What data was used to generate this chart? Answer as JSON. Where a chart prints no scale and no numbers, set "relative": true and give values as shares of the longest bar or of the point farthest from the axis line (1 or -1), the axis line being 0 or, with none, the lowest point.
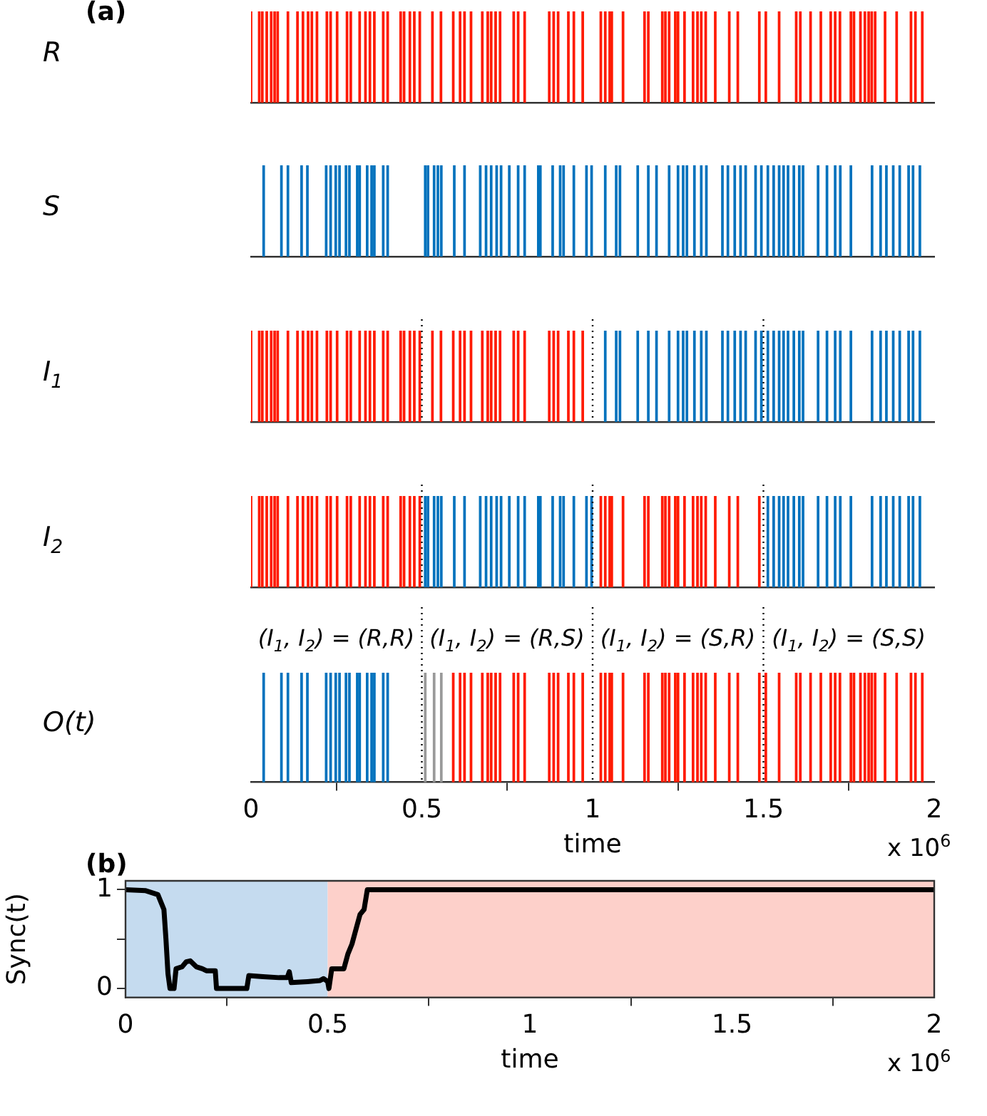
{
  "chart_data": [
    {
      "type": "bar",
      "title": "(a)",
      "ylabel": "R",
      "relative": true,
      "xlim": [
        0,
        2
      ],
      "tick_labels": false,
      "series": [
        {
          "color": "#ff1a00",
          "x": [
            0,
            0.024,
            0.033,
            0.046,
            0.059,
            0.069,
            0.078,
            0.108,
            0.136,
            0.152,
            0.167,
            0.178,
            0.193,
            0.222,
            0.233,
            0.252,
            0.281,
            0.292,
            0.318,
            0.335,
            0.348,
            0.361,
            0.387,
            0.4,
            0.438,
            0.448,
            0.465,
            0.478,
            0.494,
            0.531,
            0.556,
            0.592,
            0.612,
            0.625,
            0.644,
            0.677,
            0.693,
            0.703,
            0.716,
            0.729,
            0.769,
            0.782,
            0.801,
            0.873,
            0.886,
            0.899,
            0.929,
            0.945,
            0.971,
            1.024,
            1.037,
            1.05,
            1.056,
            1.089,
            1.152,
            1.163,
            1.204,
            1.213,
            1.224,
            1.242,
            1.25,
            1.269,
            1.294,
            1.307,
            1.318,
            1.331,
            1.359,
            1.4,
            1.425,
            1.488,
            1.507,
            1.546,
            1.596,
            1.608,
            1.638,
            1.668,
            1.697,
            1.71,
            1.724,
            1.756,
            1.765,
            1.784,
            1.797,
            1.808,
            1.817,
            1.827,
            1.856,
            1.89,
            1.932,
            1.945,
            1.965
          ],
          "values": [
            1,
            1,
            1,
            1,
            1,
            1,
            1,
            1,
            1,
            1,
            1,
            1,
            1,
            1,
            1,
            1,
            1,
            1,
            1,
            1,
            1,
            1,
            1,
            1,
            1,
            1,
            1,
            1,
            1,
            1,
            1,
            1,
            1,
            1,
            1,
            1,
            1,
            1,
            1,
            1,
            1,
            1,
            1,
            1,
            1,
            1,
            1,
            1,
            1,
            1,
            1,
            1,
            1,
            1,
            1,
            1,
            1,
            1,
            1,
            1,
            1,
            1,
            1,
            1,
            1,
            1,
            1,
            1,
            1,
            1,
            1,
            1,
            1,
            1,
            1,
            1,
            1,
            1,
            1,
            1,
            1,
            1,
            1,
            1,
            1,
            1,
            1,
            1,
            1,
            1,
            1
          ]
        }
      ]
    },
    {
      "type": "bar",
      "ylabel": "S",
      "relative": true,
      "xlim": [
        0,
        2
      ],
      "tick_labels": false,
      "series": [
        {
          "color": "#0072bd",
          "x": [
            0.037,
            0.089,
            0.108,
            0.148,
            0.165,
            0.22,
            0.233,
            0.248,
            0.259,
            0.278,
            0.288,
            0.311,
            0.318,
            0.34,
            0.353,
            0.361,
            0.387,
            0.4,
            0.51,
            0.518,
            0.536,
            0.547,
            0.557,
            0.595,
            0.625,
            0.671,
            0.688,
            0.703,
            0.719,
            0.732,
            0.756,
            0.782,
            0.801,
            0.841,
            0.847,
            0.883,
            0.905,
            0.915,
            0.945,
            0.982,
            0.997,
            1.037,
            1.069,
            1.08,
            1.132,
            1.163,
            1.187,
            1.224,
            1.25,
            1.265,
            1.276,
            1.298,
            1.318,
            1.333,
            1.38,
            1.396,
            1.416,
            1.433,
            1.448,
            1.477,
            1.494,
            1.513,
            1.53,
            1.546,
            1.559,
            1.572,
            1.589,
            1.605,
            1.616,
            1.66,
            1.686,
            1.71,
            1.725,
            1.756,
            1.818,
            1.843,
            1.86,
            1.88,
            1.899,
            1.925,
            1.938,
            1.958
          ],
          "values": [
            1,
            1,
            1,
            1,
            1,
            1,
            1,
            1,
            1,
            1,
            1,
            1,
            1,
            1,
            1,
            1,
            1,
            1,
            1,
            1,
            1,
            1,
            1,
            1,
            1,
            1,
            1,
            1,
            1,
            1,
            1,
            1,
            1,
            1,
            1,
            1,
            1,
            1,
            1,
            1,
            1,
            1,
            1,
            1,
            1,
            1,
            1,
            1,
            1,
            1,
            1,
            1,
            1,
            1,
            1,
            1,
            1,
            1,
            1,
            1,
            1,
            1,
            1,
            1,
            1,
            1,
            1,
            1,
            1,
            1,
            1,
            1,
            1,
            1,
            1,
            1,
            1,
            1,
            1,
            1,
            1,
            1
          ]
        }
      ]
    },
    {
      "type": "bar",
      "ylabel": "I$_{1}$",
      "relative": true,
      "xlim": [
        0,
        2
      ],
      "tick_labels": false,
      "ref_lines": [
        {
          "axis": "x",
          "value": 0.5,
          "line_style": "dotted"
        },
        {
          "axis": "x",
          "value": 1,
          "line_style": "dotted"
        },
        {
          "axis": "x",
          "value": 1.5,
          "line_style": "dotted"
        }
      ],
      "series": [
        {
          "color": "#ff1a00",
          "x": [
            0,
            0.024,
            0.033,
            0.046,
            0.059,
            0.069,
            0.078,
            0.108,
            0.136,
            0.152,
            0.167,
            0.178,
            0.193,
            0.222,
            0.233,
            0.252,
            0.281,
            0.292,
            0.318,
            0.335,
            0.348,
            0.361,
            0.387,
            0.4,
            0.438,
            0.448,
            0.465,
            0.478,
            0.494,
            0.531,
            0.556,
            0.592,
            0.612,
            0.625,
            0.644,
            0.677,
            0.693,
            0.703,
            0.716,
            0.729,
            0.769,
            0.782,
            0.801,
            0.873,
            0.886,
            0.899,
            0.929,
            0.945,
            0.971
          ],
          "values": [
            1,
            1,
            1,
            1,
            1,
            1,
            1,
            1,
            1,
            1,
            1,
            1,
            1,
            1,
            1,
            1,
            1,
            1,
            1,
            1,
            1,
            1,
            1,
            1,
            1,
            1,
            1,
            1,
            1,
            1,
            1,
            1,
            1,
            1,
            1,
            1,
            1,
            1,
            1,
            1,
            1,
            1,
            1,
            1,
            1,
            1,
            1,
            1,
            1
          ]
        },
        {
          "color": "#0072bd",
          "x": [
            1.037,
            1.069,
            1.08,
            1.132,
            1.163,
            1.187,
            1.224,
            1.25,
            1.265,
            1.276,
            1.298,
            1.318,
            1.333,
            1.38,
            1.396,
            1.416,
            1.433,
            1.448,
            1.477,
            1.494,
            1.513,
            1.53,
            1.546,
            1.559,
            1.572,
            1.589,
            1.605,
            1.616,
            1.66,
            1.686,
            1.71,
            1.725,
            1.756,
            1.818,
            1.843,
            1.86,
            1.88,
            1.899,
            1.925,
            1.938,
            1.958
          ],
          "values": [
            1,
            1,
            1,
            1,
            1,
            1,
            1,
            1,
            1,
            1,
            1,
            1,
            1,
            1,
            1,
            1,
            1,
            1,
            1,
            1,
            1,
            1,
            1,
            1,
            1,
            1,
            1,
            1,
            1,
            1,
            1,
            1,
            1,
            1,
            1,
            1,
            1,
            1,
            1,
            1,
            1
          ]
        }
      ]
    },
    {
      "type": "bar",
      "ylabel": "I$_{2}$",
      "relative": true,
      "xlim": [
        0,
        2
      ],
      "tick_labels": false,
      "ref_lines": [
        {
          "axis": "x",
          "value": 0.5,
          "line_style": "dotted"
        },
        {
          "axis": "x",
          "value": 1,
          "line_style": "dotted"
        },
        {
          "axis": "x",
          "value": 1.5,
          "line_style": "dotted"
        }
      ],
      "series": [
        {
          "color": "#ff1a00",
          "x": [
            0,
            0.024,
            0.033,
            0.046,
            0.059,
            0.069,
            0.078,
            0.108,
            0.136,
            0.152,
            0.167,
            0.178,
            0.193,
            0.222,
            0.233,
            0.252,
            0.281,
            0.292,
            0.318,
            0.335,
            0.348,
            0.361,
            0.387,
            0.4,
            0.438,
            0.448,
            0.465,
            0.478,
            0.494,
            1.024,
            1.037,
            1.05,
            1.056,
            1.089,
            1.152,
            1.163,
            1.204,
            1.213,
            1.224,
            1.242,
            1.25,
            1.269,
            1.294,
            1.307,
            1.318,
            1.331,
            1.359,
            1.4,
            1.425,
            1.488
          ],
          "values": [
            1,
            1,
            1,
            1,
            1,
            1,
            1,
            1,
            1,
            1,
            1,
            1,
            1,
            1,
            1,
            1,
            1,
            1,
            1,
            1,
            1,
            1,
            1,
            1,
            1,
            1,
            1,
            1,
            1,
            1,
            1,
            1,
            1,
            1,
            1,
            1,
            1,
            1,
            1,
            1,
            1,
            1,
            1,
            1,
            1,
            1,
            1,
            1,
            1,
            1
          ]
        },
        {
          "color": "#0072bd",
          "x": [
            0.51,
            0.518,
            0.536,
            0.547,
            0.557,
            0.595,
            0.625,
            0.671,
            0.688,
            0.703,
            0.719,
            0.732,
            0.756,
            0.782,
            0.801,
            0.841,
            0.847,
            0.883,
            0.905,
            0.915,
            0.945,
            0.982,
            0.997,
            1.513,
            1.53,
            1.546,
            1.559,
            1.572,
            1.589,
            1.605,
            1.616,
            1.66,
            1.686,
            1.71,
            1.725,
            1.756,
            1.818,
            1.843,
            1.86,
            1.88,
            1.899,
            1.925,
            1.938,
            1.958
          ],
          "values": [
            1,
            1,
            1,
            1,
            1,
            1,
            1,
            1,
            1,
            1,
            1,
            1,
            1,
            1,
            1,
            1,
            1,
            1,
            1,
            1,
            1,
            1,
            1,
            1,
            1,
            1,
            1,
            1,
            1,
            1,
            1,
            1,
            1,
            1,
            1,
            1,
            1,
            1,
            1,
            1,
            1,
            1,
            1,
            1
          ]
        }
      ]
    },
    {
      "type": "bar",
      "ylabel": "O(t)",
      "xlabel": "time",
      "relative": true,
      "xlim": [
        0,
        2
      ],
      "xticks": [
        0,
        0.5,
        1,
        1.5,
        2
      ],
      "tick_labels": "x",
      "annotations": [
        "(I$_{1}$, I$_{2}$) = (R,R)",
        "(I$_{1}$, I$_{2}$) = (R,S)",
        "(I$_{1}$, I$_{2}$) = (S,R)",
        "(I$_{1}$, I$_{2}$) = (S,S)",
        "x 10$^{6}$"
      ],
      "ref_lines": [
        {
          "axis": "x",
          "value": 0.5,
          "line_style": "dotted"
        },
        {
          "axis": "x",
          "value": 1,
          "line_style": "dotted"
        },
        {
          "axis": "x",
          "value": 1.5,
          "line_style": "dotted"
        }
      ],
      "series": [
        {
          "color": "#0072bd",
          "x": [
            0.037,
            0.089,
            0.108,
            0.148,
            0.165,
            0.22,
            0.233,
            0.248,
            0.259,
            0.278,
            0.288,
            0.311,
            0.318,
            0.34,
            0.353,
            0.361,
            0.387,
            0.4
          ],
          "values": [
            1,
            1,
            1,
            1,
            1,
            1,
            1,
            1,
            1,
            1,
            1,
            1,
            1,
            1,
            1,
            1,
            1,
            1
          ]
        },
        {
          "color": "#999999",
          "x": [
            0.51,
            0.536,
            0.557
          ],
          "values": [
            1,
            1,
            1
          ]
        },
        {
          "color": "#ff1a00",
          "x": [
            0.592,
            0.612,
            0.625,
            0.644,
            0.677,
            0.693,
            0.703,
            0.716,
            0.729,
            0.769,
            0.782,
            0.801,
            0.873,
            0.886,
            0.899,
            0.929,
            0.945,
            0.971,
            1.024,
            1.037,
            1.05,
            1.056,
            1.089,
            1.152,
            1.163,
            1.204,
            1.213,
            1.224,
            1.242,
            1.25,
            1.269,
            1.294,
            1.307,
            1.318,
            1.331,
            1.359,
            1.4,
            1.425,
            1.488,
            1.507,
            1.546,
            1.596,
            1.608,
            1.638,
            1.668,
            1.697,
            1.71,
            1.724,
            1.756,
            1.765,
            1.784,
            1.797,
            1.808,
            1.817,
            1.827,
            1.856,
            1.89,
            1.932,
            1.945,
            1.965
          ],
          "values": [
            1,
            1,
            1,
            1,
            1,
            1,
            1,
            1,
            1,
            1,
            1,
            1,
            1,
            1,
            1,
            1,
            1,
            1,
            1,
            1,
            1,
            1,
            1,
            1,
            1,
            1,
            1,
            1,
            1,
            1,
            1,
            1,
            1,
            1,
            1,
            1,
            1,
            1,
            1,
            1,
            1,
            1,
            1,
            1,
            1,
            1,
            1,
            1,
            1,
            1,
            1,
            1,
            1,
            1,
            1,
            1,
            1,
            1,
            1,
            1
          ]
        }
      ]
    },
    {
      "type": "line",
      "title": "(b)",
      "xlabel": "time",
      "ylabel": "Sync(t)",
      "xlim": [
        0,
        2
      ],
      "xticks": [
        0,
        0.5,
        1,
        1.5,
        2
      ],
      "ylim": [
        -0.09,
        1.09
      ],
      "yticks": [
        0,
        {
          "value": 0.5,
          "label": null
        },
        1
      ],
      "annotations": [
        "x 10$^{6}$"
      ],
      "bands": [
        {
          "axis": "x",
          "from": 0,
          "to": 0.5,
          "color": "#c5dbef"
        },
        {
          "axis": "x",
          "from": 0.5,
          "to": 2,
          "color": "#fdd0ca"
        }
      ],
      "series": [
        {
          "color": "#000000",
          "x": [
            0,
            0.05,
            0.08,
            0.095,
            0.1,
            0.105,
            0.11,
            0.12,
            0.125,
            0.14,
            0.15,
            0.16,
            0.175,
            0.19,
            0.2,
            0.222,
            0.225,
            0.3,
            0.305,
            0.34,
            0.38,
            0.4,
            0.405,
            0.41,
            0.45,
            0.48,
            0.49,
            0.5,
            0.503,
            0.51,
            0.54,
            0.55,
            0.56,
            0.57,
            0.58,
            0.59,
            0.598,
            2
          ],
          "values": [
            1,
            0.99,
            0.95,
            0.8,
            0.5,
            0.15,
            0,
            0,
            0.2,
            0.22,
            0.27,
            0.28,
            0.22,
            0.2,
            0.18,
            0.18,
            0,
            0,
            0.13,
            0.12,
            0.11,
            0.11,
            0.17,
            0.06,
            0.07,
            0.08,
            0.1,
            0.07,
            0,
            0.2,
            0.2,
            0.35,
            0.45,
            0.6,
            0.75,
            0.8,
            1,
            1
          ]
        }
      ]
    }
  ]
}
